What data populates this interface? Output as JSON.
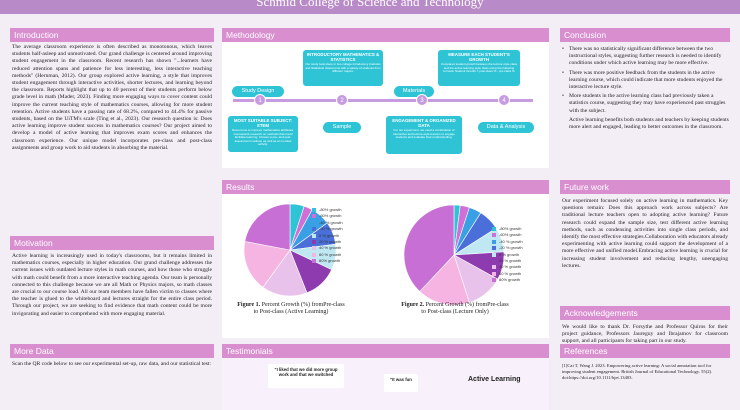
{
  "header": {
    "subtitle": "Schmid College of Science and Technology"
  },
  "introduction": {
    "heading": "Introduction",
    "text": "The average classroom experience is often described as monotonous, which leaves students half-asleep and unmotivated. Our grand challenge is centered around improving student engagement in the classroom. Recent research has shown \"...learners have reduced attention spans and patience for less interesting, less interactive teaching methods\" (Hernman, 2012). Our group explored active learning, a style that improves student engagement through interactive activities, shorter lectures, and learning beyond the classroom. Reports highlight that up to 40 percent of their students perform below grade level in math (Mader, 2023). Finding more engaging ways to cover content could improve the current teaching style of mathematics courses, allowing for more student retention. Active students have a passing rate of 68.2%, compared to 44.4% for passive students, based on the UiTM's scale (Ting et al., 2023). Our research question is: Does active learning improve student success in mathematics courses? Our project aimed to develop a model of active learning that improves exam scores and enhances the classroom experience. Our unique model incorporates pre-class and post-class assignments and group work to aid students in absorbing the material."
  },
  "motivation": {
    "heading": "Motivation",
    "text": "Active learning is increasingly used in today's classrooms, but it remains limited in mathematics courses, especially in higher education. Our grand challenge addresses the current issues with outdated lecture styles in math courses, and how those who struggle with math could benefit from a more interactive teaching agenda. Our team is personally connected to this challenge because we are all Math or Physics majors, so math classes are crucial to our course load. All our team members have fallen victim to classes where the teacher is glued to the whiteboard and lectures straight for the entire class period. Through our project, we are seeking to find evidence that math content could be more invigorating and easier to comprehend with more engaging material."
  },
  "more_data": {
    "heading": "More Data",
    "text": "Scan the QR code below to see our experimental set-up, raw data, and our statistical test:"
  },
  "methodology": {
    "heading": "Methodology",
    "boxes": [
      {
        "title": "INTRODUCTORY MATHEMATICS & STATISTICS",
        "desc": "Our study took place in two college introductory Calculus and Statistical classrooms with a variety of students from different majors."
      },
      {
        "title": "MEASURE EACH STUDENT'S GROWTH",
        "desc": "Compared student growth between the lecture style class and the active learning style class using the following formula: Student Growth = post-class % - pre-class %"
      },
      {
        "title": "MOST SUITABLE SUBJECT: STEM",
        "desc": "Recent use to improve mathematics attributes. Coursework research on methods that could facilitate learning. Chosen a pre- and post-assessment method, as well as an in-class activity."
      },
      {
        "title": "ENGAGEMENT & ORGANIZED DATA",
        "desc": "For our experiment, we used a combination of interactive and lecture-style lessons to engage students and evaluate their understanding."
      }
    ],
    "labels": [
      "Study Design",
      "Sample",
      "Materials",
      "Data & Analysis"
    ],
    "steps": [
      "1",
      "2",
      "3",
      "4"
    ]
  },
  "results": {
    "heading": "Results",
    "legend": [
      "-80% growth",
      "-60% growth",
      "-40 % growth",
      "-20 % growth",
      "0 % growth",
      "20 % growth",
      "40 % growth",
      "60 % growth",
      "80% growth"
    ],
    "legend_colors": [
      "#2ec4d6",
      "#d06fd8",
      "#3aa0e6",
      "#4a6fd9",
      "#bfe8f2",
      "#8e3bb0",
      "#e9c2ec",
      "#f6b4e2",
      "#c86fd6"
    ],
    "captions": [
      {
        "label": "Figure 1.",
        "text": " Percent Growth (%) fromPre-class to Post-class (Active Learning)"
      },
      {
        "label": "Figure 2.",
        "text": " Percent Growth (%) fromPre-class to Post-class (Lecture Only)"
      }
    ]
  },
  "chart_data": [
    {
      "type": "pie",
      "categories": [
        "-80% growth",
        "-60% growth",
        "-40 % growth",
        "-20 % growth",
        "0 % growth",
        "20 % growth",
        "40 % growth",
        "60 % growth",
        "80% growth"
      ],
      "values": [
        5,
        3,
        7,
        8,
        9,
        12,
        16,
        18,
        22
      ]
    },
    {
      "type": "pie",
      "categories": [
        "-80% growth",
        "-60% growth",
        "-40 % growth",
        "-20 % growth",
        "0 % growth",
        "20 % growth",
        "40 % growth",
        "60 % growth",
        "80% growth"
      ],
      "values": [
        2,
        3,
        4,
        7,
        8,
        9,
        12,
        17,
        38
      ]
    }
  ],
  "testimonials": {
    "heading": "Testimonials",
    "quotes": [
      "\"I liked that we did more group work and that we switched",
      "\"It was fun",
      "Active Learning"
    ]
  },
  "conclusion": {
    "heading": "Conclusion",
    "items": [
      "There was no statistically significant difference between the two instructional styles, suggesting further research is needed to identify conditions under which active learning may be more effective.",
      "There was more positive feedback from the students in the active learning course, which could indicate that more students enjoyed the interactive lecture style.",
      "More students in the active learning class had previously taken a statistics course, suggesting they may have experienced past struggles with the subject.",
      "Active learning benefits both students and teachers by keeping students more alert and engaged, leading to better outcomes in the classroom."
    ]
  },
  "future_work": {
    "heading": "Future work",
    "text": "Our experiment focused solely on active learning in mathematics. Key questions remain: Does this approach work across subjects? Are traditional lecture teachers open to adopting active learning? Future research could expand the sample size, test different active learning methods, such as condensing activities into single class periods, and identify the most effective strategies.Collaboration with educators already experimenting with active learning could support the development of a more effective and unified model.Embracing active learning is crucial for increasing student involvement and reducing lengthy, unengaging lectures."
  },
  "acknowledgements": {
    "heading": "Acknowledgements",
    "text": "We would like to thank Dr. Forsythe and Professor Quiros for their project guidance, Professors Jaureguy and Ibrajamov for classroom support, and all participants for taking part in our study."
  },
  "references": {
    "heading": "References",
    "text": "[1]Cai T, Wang J. 2023. Empowering active learning: A social annotation tool for improving student engagement. British Journal of Educational Technology. 55(2). doi:https://doi.org/10.1111/bjet.13403."
  }
}
